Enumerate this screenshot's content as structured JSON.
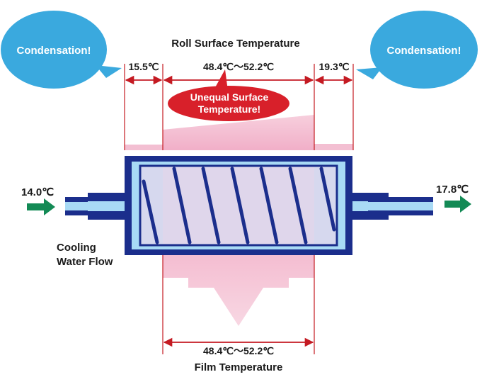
{
  "title": "Roll Surface Temperature",
  "left_bubble": "Condensation!",
  "right_bubble": "Condensation!",
  "left_edge_temp": "15.5℃",
  "center_range": "48.4℃～52.2℃",
  "right_edge_temp": "19.3℃",
  "warning": {
    "line1": "Unequal Surface",
    "line2": "Temperature!"
  },
  "inlet_temp": "14.0℃",
  "outlet_temp": "17.8℃",
  "cooling_label": {
    "line1": "Cooling",
    "line2": "Water Flow"
  },
  "film_range": "48.4℃～52.2℃",
  "film_label": "Film Temperature",
  "colors": {
    "bubble_blue": "#3aa9de",
    "warning_red": "#d8202a",
    "dimension_red": "#c41a22",
    "roll_navy": "#1b2e8c",
    "heat_pink": "#f2b9cf",
    "flow_green": "#138a55"
  }
}
